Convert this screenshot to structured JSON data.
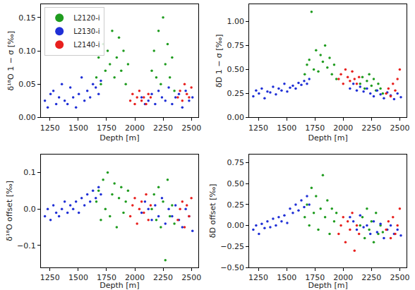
{
  "chart_data": [
    {
      "type": "scatter",
      "y_label": "δ¹⁸O 1 − σ [‰]",
      "x_label": "Depth [m]",
      "legend": "upper left",
      "marker": "circle",
      "xlim": [
        1170,
        2560
      ],
      "xticks": [
        1250,
        1500,
        1750,
        2000,
        2250,
        2500
      ],
      "ylim": [
        0,
        0.17
      ],
      "yticks": [
        {
          "value": 0,
          "label": "0.00"
        },
        {
          "value": 0.05,
          "label": "0.05"
        },
        {
          "value": 0.1,
          "label": "0.10"
        },
        {
          "value": 0.15,
          "label": "0.15"
        }
      ],
      "series": [
        {
          "name": "L2120-i",
          "color": "#1f9c1f",
          "x": [
            1660,
            1680,
            1700,
            1720,
            1740,
            1760,
            1780,
            1800,
            1820,
            1840,
            1860,
            1880,
            1900,
            1920,
            1940,
            2150,
            2170,
            2190,
            2210,
            2230,
            2250,
            2270,
            2290,
            2310,
            2330,
            2350
          ],
          "values": [
            0.06,
            0.09,
            0.05,
            0.11,
            0.07,
            0.1,
            0.08,
            0.13,
            0.06,
            0.09,
            0.12,
            0.07,
            0.1,
            0.05,
            0.08,
            0.07,
            0.1,
            0.06,
            0.13,
            0.05,
            0.15,
            0.08,
            0.11,
            0.06,
            0.09,
            0.04
          ]
        },
        {
          "name": "L2130-i",
          "color": "#1f2fd6",
          "x": [
            1205,
            1230,
            1255,
            1280,
            1305,
            1330,
            1355,
            1380,
            1405,
            1430,
            1455,
            1480,
            1505,
            1530,
            1555,
            1580,
            1605,
            1630,
            1655,
            1680,
            1700,
            2060,
            2090,
            2120,
            2150,
            2180,
            2210,
            2240,
            2270,
            2300,
            2330,
            2360,
            2390,
            2420,
            2450,
            2480,
            2510
          ],
          "values": [
            0.025,
            0.015,
            0.035,
            0.04,
            0.02,
            0.03,
            0.05,
            0.025,
            0.02,
            0.045,
            0.03,
            0.015,
            0.035,
            0.06,
            0.025,
            0.04,
            0.03,
            0.05,
            0.045,
            0.035,
            0.055,
            0.03,
            0.02,
            0.025,
            0.035,
            0.02,
            0.04,
            0.03,
            0.025,
            0.045,
            0.02,
            0.03,
            0.035,
            0.015,
            0.04,
            0.025,
            0.03
          ]
        },
        {
          "name": "L2140-i",
          "color": "#e8201e",
          "x": [
            1960,
            1980,
            2000,
            2020,
            2040,
            2060,
            2080,
            2100,
            2120,
            2140,
            2380,
            2400,
            2420,
            2440,
            2460,
            2480,
            2500
          ],
          "values": [
            0.025,
            0.035,
            0.02,
            0.03,
            0.04,
            0.025,
            0.03,
            0.02,
            0.035,
            0.03,
            0.03,
            0.04,
            0.025,
            0.05,
            0.035,
            0.03,
            0.045
          ]
        }
      ]
    },
    {
      "type": "scatter",
      "y_label": "δD 1 − σ [‰]",
      "x_label": "Depth [m]",
      "marker": "circle",
      "xlim": [
        1170,
        2560
      ],
      "xticks": [
        1250,
        1500,
        1750,
        2000,
        2250,
        2500
      ],
      "ylim": [
        0,
        1.18
      ],
      "yticks": [
        {
          "value": 0,
          "label": "0.00"
        },
        {
          "value": 0.25,
          "label": "0.25"
        },
        {
          "value": 0.5,
          "label": "0.50"
        },
        {
          "value": 0.75,
          "label": "0.75"
        },
        {
          "value": 1,
          "label": "1.00"
        }
      ],
      "series": [
        {
          "name": "L2120-i",
          "color": "#1f9c1f",
          "x": [
            1660,
            1680,
            1700,
            1720,
            1740,
            1760,
            1780,
            1800,
            1820,
            1840,
            1860,
            1880,
            1900,
            1920,
            1940,
            2150,
            2170,
            2190,
            2210,
            2230,
            2250,
            2270,
            2290,
            2310,
            2330,
            2350
          ],
          "values": [
            0.45,
            0.55,
            0.6,
            1.1,
            0.5,
            0.7,
            0.48,
            0.65,
            0.58,
            0.75,
            0.52,
            0.62,
            0.45,
            0.55,
            0.4,
            0.35,
            0.42,
            0.3,
            0.38,
            0.45,
            0.33,
            0.4,
            0.28,
            0.35,
            0.3,
            0.25
          ]
        },
        {
          "name": "L2130-i",
          "color": "#1f2fd6",
          "x": [
            1205,
            1230,
            1255,
            1280,
            1305,
            1330,
            1355,
            1380,
            1405,
            1430,
            1455,
            1480,
            1505,
            1530,
            1555,
            1580,
            1605,
            1630,
            1655,
            1680,
            1700,
            2060,
            2090,
            2120,
            2150,
            2180,
            2210,
            2240,
            2270,
            2300,
            2330,
            2360,
            2390,
            2420,
            2450,
            2480,
            2510
          ],
          "values": [
            0.22,
            0.28,
            0.25,
            0.3,
            0.2,
            0.27,
            0.26,
            0.32,
            0.24,
            0.3,
            0.28,
            0.35,
            0.27,
            0.31,
            0.33,
            0.3,
            0.36,
            0.34,
            0.38,
            0.35,
            0.4,
            0.3,
            0.35,
            0.28,
            0.32,
            0.27,
            0.3,
            0.25,
            0.22,
            0.28,
            0.24,
            0.2,
            0.26,
            0.23,
            0.19,
            0.25,
            0.21
          ]
        },
        {
          "name": "L2140-i",
          "color": "#e8201e",
          "x": [
            1960,
            1980,
            2000,
            2020,
            2040,
            2060,
            2080,
            2100,
            2120,
            2140,
            2380,
            2400,
            2420,
            2440,
            2460,
            2480,
            2500
          ],
          "values": [
            0.4,
            0.45,
            0.35,
            0.5,
            0.42,
            0.38,
            0.48,
            0.4,
            0.35,
            0.42,
            0.25,
            0.3,
            0.22,
            0.35,
            0.28,
            0.4,
            0.5
          ]
        }
      ]
    },
    {
      "type": "scatter",
      "y_label": "δ¹⁸O offset [‰]",
      "x_label": "Depth [m]",
      "marker": "circle",
      "xlim": [
        1170,
        2560
      ],
      "xticks": [
        1250,
        1500,
        1750,
        2000,
        2250,
        2500
      ],
      "ylim": [
        -0.16,
        0.15
      ],
      "yticks": [
        {
          "value": -0.1,
          "label": "−0.1"
        },
        {
          "value": 0,
          "label": "0.0"
        },
        {
          "value": 0.1,
          "label": "0.1"
        }
      ],
      "series": [
        {
          "name": "L2120-i",
          "color": "#1f9c1f",
          "x": [
            1660,
            1680,
            1700,
            1720,
            1740,
            1760,
            1780,
            1800,
            1820,
            1840,
            1860,
            1880,
            1900,
            1920,
            1940,
            2150,
            2170,
            2190,
            2210,
            2230,
            2250,
            2270,
            2290,
            2310,
            2330,
            2350
          ],
          "values": [
            0.02,
            0.05,
            -0.03,
            0.08,
            0.0,
            0.1,
            -0.02,
            0.04,
            0.07,
            -0.05,
            0.03,
            0.06,
            -0.01,
            0.02,
            0.05,
            0.0,
            0.04,
            -0.03,
            0.06,
            -0.05,
            0.02,
            -0.14,
            0.08,
            -0.02,
            0.01,
            -0.04
          ]
        },
        {
          "name": "L2130-i",
          "color": "#1f2fd6",
          "x": [
            1205,
            1230,
            1255,
            1280,
            1305,
            1330,
            1355,
            1380,
            1405,
            1430,
            1455,
            1480,
            1505,
            1530,
            1555,
            1580,
            1605,
            1630,
            1655,
            1680,
            1700,
            2060,
            2090,
            2120,
            2150,
            2180,
            2210,
            2240,
            2270,
            2300,
            2330,
            2360,
            2390,
            2420,
            2450,
            2480,
            2510
          ],
          "values": [
            -0.02,
            0.0,
            -0.03,
            0.01,
            -0.01,
            -0.02,
            0.0,
            0.02,
            -0.01,
            0.01,
            0.0,
            0.02,
            -0.01,
            0.03,
            0.01,
            0.04,
            0.02,
            0.05,
            0.03,
            0.06,
            0.04,
            -0.01,
            0.02,
            0.0,
            -0.03,
            0.01,
            -0.02,
            0.03,
            -0.04,
            0.0,
            -0.02,
            0.01,
            -0.03,
            -0.05,
            0.0,
            -0.02,
            -0.06
          ]
        },
        {
          "name": "L2140-i",
          "color": "#e8201e",
          "x": [
            1960,
            1980,
            2000,
            2020,
            2040,
            2060,
            2080,
            2100,
            2120,
            2140,
            2380,
            2400,
            2420,
            2440,
            2460,
            2480,
            2500
          ],
          "values": [
            -0.02,
            0.01,
            0.03,
            -0.04,
            0.0,
            0.02,
            -0.01,
            0.04,
            -0.03,
            0.01,
            -0.03,
            0.0,
            0.02,
            -0.05,
            0.01,
            -0.02,
            0.03
          ]
        }
      ]
    },
    {
      "type": "scatter",
      "y_label": "δD offset [‰]",
      "x_label": "Depth [m]",
      "marker": "circle",
      "xlim": [
        1170,
        2560
      ],
      "xticks": [
        1250,
        1500,
        1750,
        2000,
        2250,
        2500
      ],
      "ylim": [
        -0.5,
        0.85
      ],
      "yticks": [
        {
          "value": -0.5,
          "label": "−0.50"
        },
        {
          "value": -0.25,
          "label": "−0.25"
        },
        {
          "value": 0,
          "label": "0.00"
        },
        {
          "value": 0.25,
          "label": "0.25"
        },
        {
          "value": 0.5,
          "label": "0.50"
        },
        {
          "value": 0.75,
          "label": "0.75"
        }
      ],
      "series": [
        {
          "name": "L2120-i",
          "color": "#1f9c1f",
          "x": [
            1660,
            1680,
            1700,
            1720,
            1740,
            1760,
            1780,
            1800,
            1820,
            1840,
            1860,
            1880,
            1900,
            1920,
            1940,
            2150,
            2170,
            2190,
            2210,
            2230,
            2250,
            2270,
            2290,
            2310,
            2330,
            2350
          ],
          "values": [
            0.1,
            0.25,
            0.0,
            0.45,
            0.15,
            0.35,
            -0.05,
            0.2,
            0.6,
            0.1,
            0.3,
            -0.1,
            0.2,
            0.05,
            0.15,
            0.0,
            0.1,
            -0.15,
            0.2,
            -0.05,
            0.05,
            -0.2,
            0.15,
            -0.1,
            0.0,
            -0.08
          ]
        },
        {
          "name": "L2130-i",
          "color": "#1f2fd6",
          "x": [
            1205,
            1230,
            1255,
            1280,
            1305,
            1330,
            1355,
            1380,
            1405,
            1430,
            1455,
            1480,
            1505,
            1530,
            1555,
            1580,
            1605,
            1630,
            1655,
            1680,
            1700,
            2060,
            2090,
            2120,
            2150,
            2180,
            2210,
            2240,
            2270,
            2300,
            2330,
            2360,
            2390,
            2420,
            2450,
            2480,
            2510
          ],
          "values": [
            -0.05,
            0.0,
            -0.1,
            0.02,
            -0.03,
            0.05,
            -0.02,
            0.08,
            0.0,
            0.1,
            0.05,
            0.12,
            0.03,
            0.2,
            0.15,
            0.25,
            0.18,
            0.3,
            0.22,
            0.35,
            0.25,
            0.1,
            0.05,
            -0.05,
            0.12,
            -0.02,
            0.0,
            -0.1,
            0.05,
            -0.08,
            0.02,
            -0.15,
            -0.05,
            0.0,
            -0.1,
            -0.05,
            -0.12
          ]
        },
        {
          "name": "L2140-i",
          "color": "#e8201e",
          "x": [
            1960,
            1980,
            2000,
            2020,
            2040,
            2060,
            2080,
            2100,
            2120,
            2140,
            2380,
            2400,
            2420,
            2440,
            2460,
            2480,
            2500
          ],
          "values": [
            -0.1,
            0.0,
            0.1,
            -0.2,
            0.05,
            -0.05,
            0.15,
            -0.3,
            0.0,
            -0.1,
            -0.05,
            0.05,
            -0.15,
            0.1,
            -0.1,
            0.0,
            0.2
          ]
        }
      ]
    }
  ]
}
